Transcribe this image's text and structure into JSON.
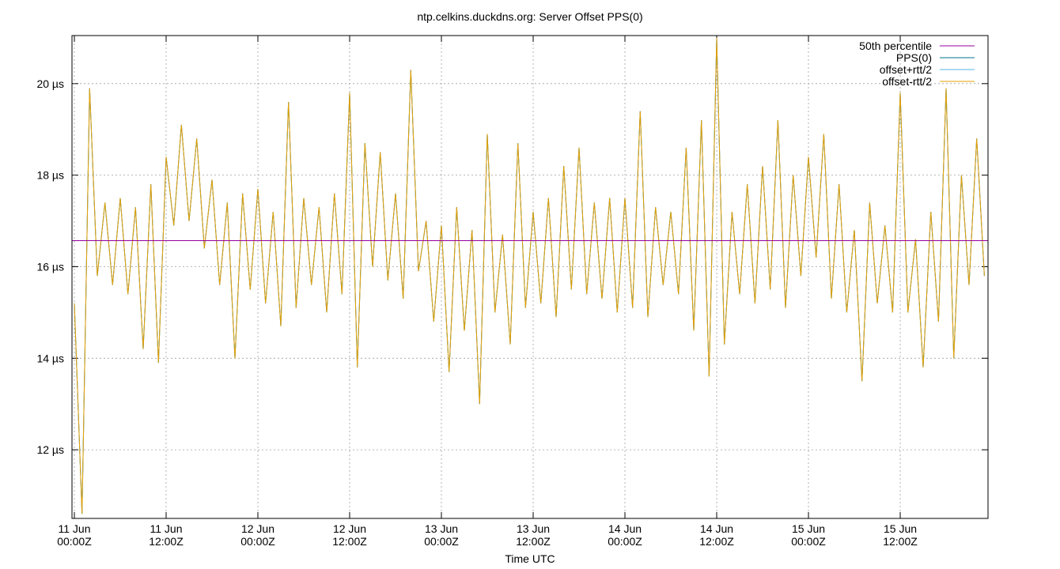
{
  "chart_data": {
    "type": "line",
    "title": "ntp.celkins.duckdns.org: Server Offset PPS(0)",
    "x_label": "Time UTC",
    "xlim": [
      -0.31,
      119.48
    ],
    "ylim": [
      10.5,
      21.05
    ],
    "grid": true,
    "legend": "top-right",
    "xticks": [
      {
        "value": 0,
        "label": [
          "11 Jun",
          "00:00Z"
        ]
      },
      {
        "value": 12,
        "label": [
          "11 Jun",
          "12:00Z"
        ]
      },
      {
        "value": 24,
        "label": [
          "12 Jun",
          "00:00Z"
        ]
      },
      {
        "value": 36,
        "label": [
          "12 Jun",
          "12:00Z"
        ]
      },
      {
        "value": 48,
        "label": [
          "13 Jun",
          "00:00Z"
        ]
      },
      {
        "value": 60,
        "label": [
          "13 Jun",
          "12:00Z"
        ]
      },
      {
        "value": 72,
        "label": [
          "14 Jun",
          "00:00Z"
        ]
      },
      {
        "value": 84,
        "label": [
          "14 Jun",
          "12:00Z"
        ]
      },
      {
        "value": 96,
        "label": [
          "15 Jun",
          "00:00Z"
        ]
      },
      {
        "value": 108,
        "label": [
          "15 Jun",
          "12:00Z"
        ]
      }
    ],
    "yticks": [
      {
        "value": 12,
        "label": "12 µs"
      },
      {
        "value": 14,
        "label": "14 µs"
      },
      {
        "value": 16,
        "label": "16 µs"
      },
      {
        "value": 18,
        "label": "18 µs"
      },
      {
        "value": 20,
        "label": "20 µs"
      }
    ],
    "x": [
      0,
      1,
      2,
      3,
      4,
      5,
      6,
      7,
      8,
      9,
      10,
      11,
      12,
      13,
      14,
      15,
      16,
      17,
      18,
      19,
      20,
      21,
      22,
      23,
      24,
      25,
      26,
      27,
      28,
      29,
      30,
      31,
      32,
      33,
      34,
      35,
      36,
      37,
      38,
      39,
      40,
      41,
      42,
      43,
      44,
      45,
      46,
      47,
      48,
      49,
      50,
      51,
      52,
      53,
      54,
      55,
      56,
      57,
      58,
      59,
      60,
      61,
      62,
      63,
      64,
      65,
      66,
      67,
      68,
      69,
      70,
      71,
      72,
      73,
      74,
      75,
      76,
      77,
      78,
      79,
      80,
      81,
      82,
      83,
      84,
      85,
      86,
      87,
      88,
      89,
      90,
      91,
      92,
      93,
      94,
      95,
      96,
      97,
      98,
      99,
      100,
      101,
      102,
      103,
      104,
      105,
      106,
      107,
      108,
      109,
      110,
      111,
      112,
      113,
      114,
      115,
      116,
      117,
      118,
      119
    ],
    "percentile": {
      "name": "50th percentile",
      "color": "#94009f",
      "value": 16.57
    },
    "series": [
      {
        "name": "PPS(0)",
        "color": "#00758f",
        "values": [
          15.2,
          10.6,
          19.9,
          15.8,
          17.4,
          15.6,
          17.5,
          15.4,
          17.3,
          14.2,
          17.8,
          13.9,
          18.4,
          16.9,
          19.1,
          17.0,
          18.8,
          16.4,
          17.9,
          15.6,
          17.4,
          14.0,
          17.6,
          15.5,
          17.7,
          15.2,
          17.2,
          14.7,
          19.6,
          15.1,
          17.5,
          15.6,
          17.3,
          15.0,
          17.6,
          15.4,
          19.8,
          13.8,
          18.7,
          16.0,
          18.5,
          15.7,
          17.6,
          15.3,
          20.3,
          15.9,
          17.0,
          14.8,
          16.9,
          13.7,
          17.3,
          14.6,
          16.8,
          13.0,
          18.9,
          15.0,
          16.7,
          14.3,
          18.7,
          15.1,
          17.2,
          15.2,
          17.5,
          14.9,
          18.2,
          15.5,
          18.6,
          15.4,
          17.4,
          15.3,
          17.5,
          15.0,
          17.5,
          15.1,
          19.4,
          14.9,
          17.3,
          15.6,
          17.2,
          15.4,
          18.6,
          14.6,
          19.2,
          13.6,
          21.0,
          14.3,
          17.2,
          15.4,
          17.8,
          15.2,
          18.2,
          15.5,
          19.2,
          15.1,
          18.0,
          15.8,
          18.4,
          16.2,
          18.9,
          15.3,
          17.8,
          15.0,
          16.8,
          13.5,
          17.4,
          15.2,
          16.9,
          15.0,
          19.8,
          15.0,
          16.6,
          13.8,
          17.2,
          14.8,
          19.9,
          14.0,
          18.0,
          15.6,
          18.8,
          15.8
        ]
      },
      {
        "name": "offset+rtt/2",
        "color": "#56b4e9",
        "values": [
          15.2,
          10.6,
          19.9,
          15.8,
          17.4,
          15.6,
          17.5,
          15.4,
          17.3,
          14.2,
          17.8,
          13.9,
          18.4,
          16.9,
          19.1,
          17.0,
          18.8,
          16.4,
          17.9,
          15.6,
          17.4,
          14.0,
          17.6,
          15.5,
          17.7,
          15.2,
          17.2,
          14.7,
          19.6,
          15.1,
          17.5,
          15.6,
          17.3,
          15.0,
          17.6,
          15.4,
          19.8,
          13.8,
          18.7,
          16.0,
          18.5,
          15.7,
          17.6,
          15.3,
          20.3,
          15.9,
          17.0,
          14.8,
          16.9,
          13.7,
          17.3,
          14.6,
          16.8,
          13.0,
          18.9,
          15.0,
          16.7,
          14.3,
          18.7,
          15.1,
          17.2,
          15.2,
          17.5,
          14.9,
          18.2,
          15.5,
          18.6,
          15.4,
          17.4,
          15.3,
          17.5,
          15.0,
          17.5,
          15.1,
          19.4,
          14.9,
          17.3,
          15.6,
          17.2,
          15.4,
          18.6,
          14.6,
          19.2,
          13.6,
          21.0,
          14.3,
          17.2,
          15.4,
          17.8,
          15.2,
          18.2,
          15.5,
          19.2,
          15.1,
          18.0,
          15.8,
          18.4,
          16.2,
          18.9,
          15.3,
          17.8,
          15.0,
          16.8,
          13.5,
          17.4,
          15.2,
          16.9,
          15.0,
          19.8,
          15.0,
          16.6,
          13.8,
          17.2,
          14.8,
          19.9,
          14.0,
          18.0,
          15.6,
          18.8,
          15.8
        ]
      },
      {
        "name": "offset-rtt/2",
        "color": "#e69f00",
        "values": [
          15.2,
          10.6,
          19.9,
          15.8,
          17.4,
          15.6,
          17.5,
          15.4,
          17.3,
          14.2,
          17.8,
          13.9,
          18.4,
          16.9,
          19.1,
          17.0,
          18.8,
          16.4,
          17.9,
          15.6,
          17.4,
          14.0,
          17.6,
          15.5,
          17.7,
          15.2,
          17.2,
          14.7,
          19.6,
          15.1,
          17.5,
          15.6,
          17.3,
          15.0,
          17.6,
          15.4,
          19.8,
          13.8,
          18.7,
          16.0,
          18.5,
          15.7,
          17.6,
          15.3,
          20.3,
          15.9,
          17.0,
          14.8,
          16.9,
          13.7,
          17.3,
          14.6,
          16.8,
          13.0,
          18.9,
          15.0,
          16.7,
          14.3,
          18.7,
          15.1,
          17.2,
          15.2,
          17.5,
          14.9,
          18.2,
          15.5,
          18.6,
          15.4,
          17.4,
          15.3,
          17.5,
          15.0,
          17.5,
          15.1,
          19.4,
          14.9,
          17.3,
          15.6,
          17.2,
          15.4,
          18.6,
          14.6,
          19.2,
          13.6,
          21.0,
          14.3,
          17.2,
          15.4,
          17.8,
          15.2,
          18.2,
          15.5,
          19.2,
          15.1,
          18.0,
          15.8,
          18.4,
          16.2,
          18.9,
          15.3,
          17.8,
          15.0,
          16.8,
          13.5,
          17.4,
          15.2,
          16.9,
          15.0,
          19.8,
          15.0,
          16.6,
          13.8,
          17.2,
          14.8,
          19.9,
          14.0,
          18.0,
          15.6,
          18.8,
          15.8
        ]
      }
    ]
  }
}
